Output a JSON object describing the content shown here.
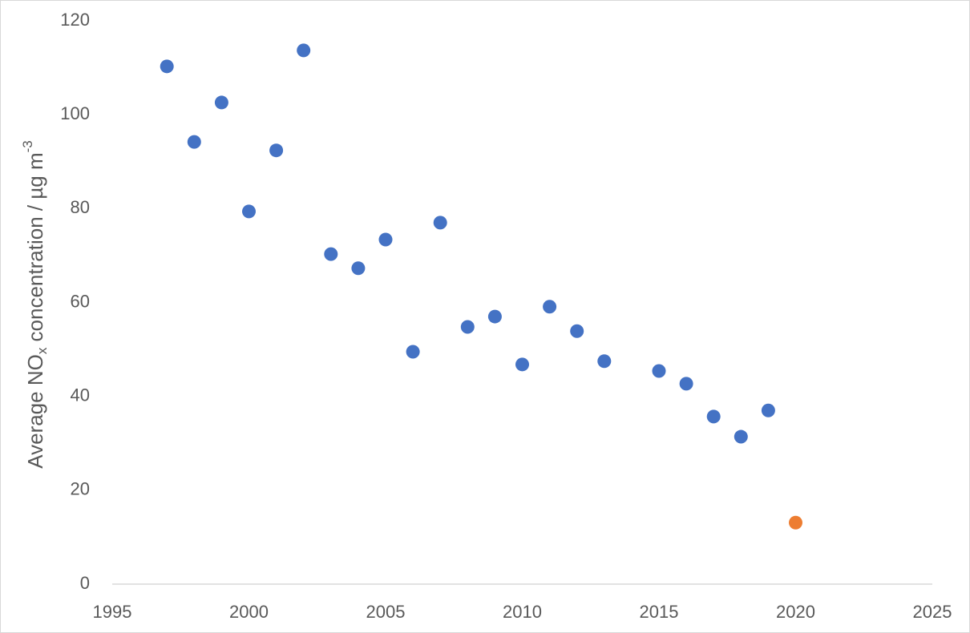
{
  "chart_data": {
    "type": "scatter",
    "y_label": [
      "Average NO",
      "x",
      " concentration / µg m",
      "-3"
    ],
    "series": [
      {
        "color": "#4472c4",
        "x": [
          1997,
          1998,
          1999,
          2000,
          2001,
          2002,
          2003,
          2004,
          2005,
          2006,
          2007,
          2008,
          2009,
          2010,
          2011,
          2012,
          2013,
          2015,
          2016,
          2017,
          2018,
          2019
        ],
        "values": [
          110.3,
          94.2,
          102.6,
          79.4,
          92.4,
          113.7,
          70.3,
          67.3,
          73.4,
          49.5,
          77.0,
          54.8,
          57.0,
          46.8,
          59.1,
          53.9,
          47.5,
          45.4,
          42.7,
          35.7,
          31.4,
          37.0
        ]
      },
      {
        "color": "#ed7d31",
        "x": [
          2020
        ],
        "values": [
          13.1
        ]
      }
    ],
    "xlim": [
      1995,
      2025
    ],
    "xticks": [
      1995,
      2000,
      2005,
      2010,
      2015,
      2020,
      2025
    ],
    "ylim": [
      0,
      120
    ],
    "yticks": [
      0,
      20,
      40,
      60,
      80,
      100,
      120
    ],
    "grid": false
  }
}
